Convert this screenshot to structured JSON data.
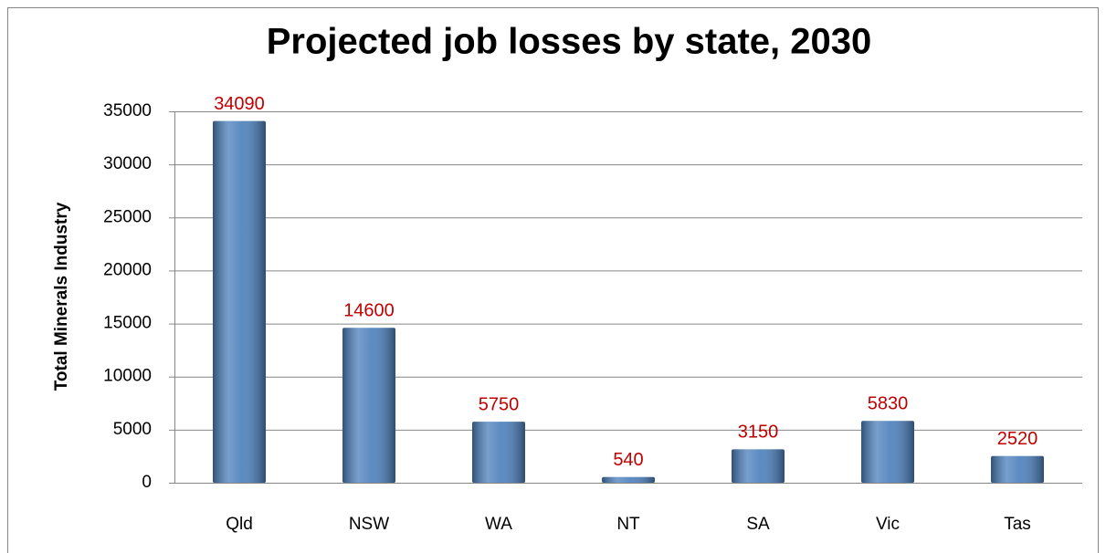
{
  "chart_data": {
    "type": "bar",
    "title": "Projected job losses by state, 2030",
    "y_label": "Total Minerals Industry",
    "categories": [
      "Qld",
      "NSW",
      "WA",
      "NT",
      "SA",
      "Vic",
      "Tas"
    ],
    "values": [
      34090,
      14600,
      5750,
      540,
      3150,
      5830,
      2520
    ],
    "color": "#4a7ebb",
    "label_color": "#c00000",
    "ylim": [
      0,
      35000
    ],
    "yticks": [
      0,
      5000,
      10000,
      15000,
      20000,
      25000,
      30000,
      35000
    ],
    "grid": true
  }
}
